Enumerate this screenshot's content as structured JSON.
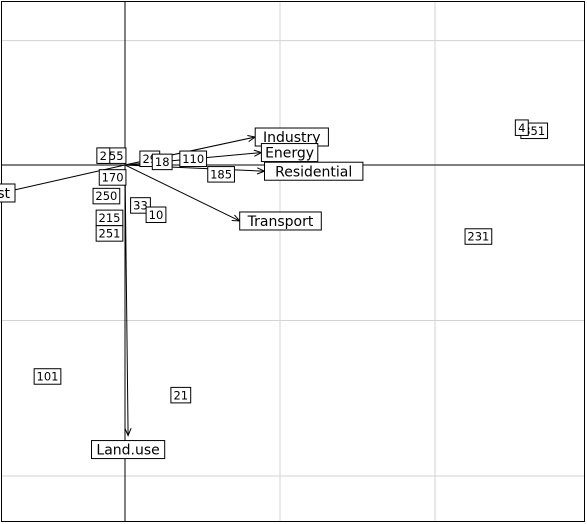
{
  "chart_data": {
    "type": "scatter",
    "title": "",
    "xlabel": "",
    "ylabel": "",
    "grid": true,
    "xlim": [
      -0.4,
      1.5
    ],
    "ylim": [
      -1.16,
      0.52
    ],
    "grid_x": [
      0,
      0.5,
      1.0
    ],
    "grid_y": [
      0.4,
      0,
      -0.5,
      -1.0
    ],
    "observations": [
      {
        "label": "255",
        "x": -0.04,
        "y": 0.03
      },
      {
        "label": "2",
        "x": -0.07,
        "y": 0.03
      },
      {
        "label": "29",
        "x": 0.08,
        "y": 0.02
      },
      {
        "label": "18",
        "x": 0.12,
        "y": 0.01
      },
      {
        "label": "110",
        "x": 0.22,
        "y": 0.02
      },
      {
        "label": "185",
        "x": 0.31,
        "y": -0.03
      },
      {
        "label": "170",
        "x": -0.04,
        "y": -0.04
      },
      {
        "label": "250",
        "x": -0.06,
        "y": -0.1
      },
      {
        "label": "33",
        "x": 0.05,
        "y": -0.13
      },
      {
        "label": "10",
        "x": 0.1,
        "y": -0.16
      },
      {
        "label": "215",
        "x": -0.05,
        "y": -0.17
      },
      {
        "label": "251",
        "x": -0.05,
        "y": -0.22
      },
      {
        "label": "231",
        "x": 1.14,
        "y": -0.23
      },
      {
        "label": "351",
        "x": 1.32,
        "y": 0.11
      },
      {
        "label": "4",
        "x": 1.28,
        "y": 0.12
      },
      {
        "label": "101",
        "x": -0.25,
        "y": -0.68
      },
      {
        "label": "21",
        "x": 0.18,
        "y": -0.74
      }
    ],
    "variables": [
      {
        "label": "Industry",
        "x": 0.42,
        "y": 0.09
      },
      {
        "label": "Energy",
        "x": 0.44,
        "y": 0.04
      },
      {
        "label": "Residential",
        "x": 0.45,
        "y": -0.02
      },
      {
        "label": "Transport",
        "x": 0.37,
        "y": -0.18
      },
      {
        "label": "Land.use",
        "x": 0.01,
        "y": -0.87
      },
      {
        "label": "st",
        "x": -0.4,
        "y": -0.09
      }
    ]
  }
}
